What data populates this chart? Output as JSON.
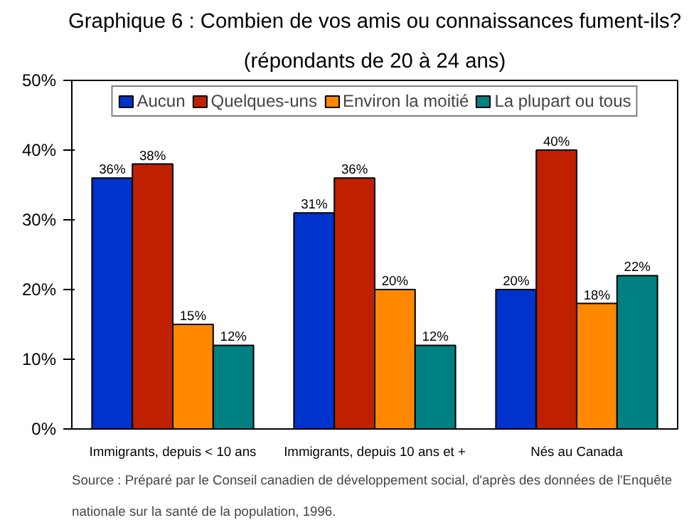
{
  "chart_data": {
    "type": "bar",
    "title": "Graphique 6 : Combien de vos amis ou connaissances fument-ils?",
    "subtitle": "(répondants de 20 à 24 ans)",
    "categories": [
      "Immigrants, depuis < 10 ans",
      "Immigrants, depuis 10 ans et +",
      "Nés au Canada"
    ],
    "series": [
      {
        "name": "Aucun",
        "color": "#0033cc",
        "values": [
          36,
          31,
          20
        ],
        "value_labels": [
          "36%",
          "31%",
          "20%"
        ]
      },
      {
        "name": "Quelques-uns",
        "color": "#c02000",
        "values": [
          38,
          36,
          40
        ],
        "value_labels": [
          "38%",
          "36%",
          "40%"
        ]
      },
      {
        "name": "Environ la moitié",
        "color": "#ff8800",
        "values": [
          15,
          20,
          18
        ],
        "value_labels": [
          "15%",
          "20%",
          "18%"
        ]
      },
      {
        "name": "La plupart ou tous",
        "color": "#008080",
        "values": [
          12,
          12,
          22
        ],
        "value_labels": [
          "12%",
          "12%",
          "22%"
        ]
      }
    ],
    "ylim": [
      0,
      50
    ],
    "yticks": [
      {
        "value": 0,
        "label": "0%"
      },
      {
        "value": 10,
        "label": "10%"
      },
      {
        "value": 20,
        "label": "20%"
      },
      {
        "value": 30,
        "label": "30%"
      },
      {
        "value": 40,
        "label": "40%"
      },
      {
        "value": 50,
        "label": "50%"
      }
    ],
    "grid": false,
    "legend": "top",
    "annotations": [
      "Source : Préparé par le Conseil canadien de développement social, d'après des données de l'Enquête nationale sur la santé de la population, 1996."
    ]
  }
}
